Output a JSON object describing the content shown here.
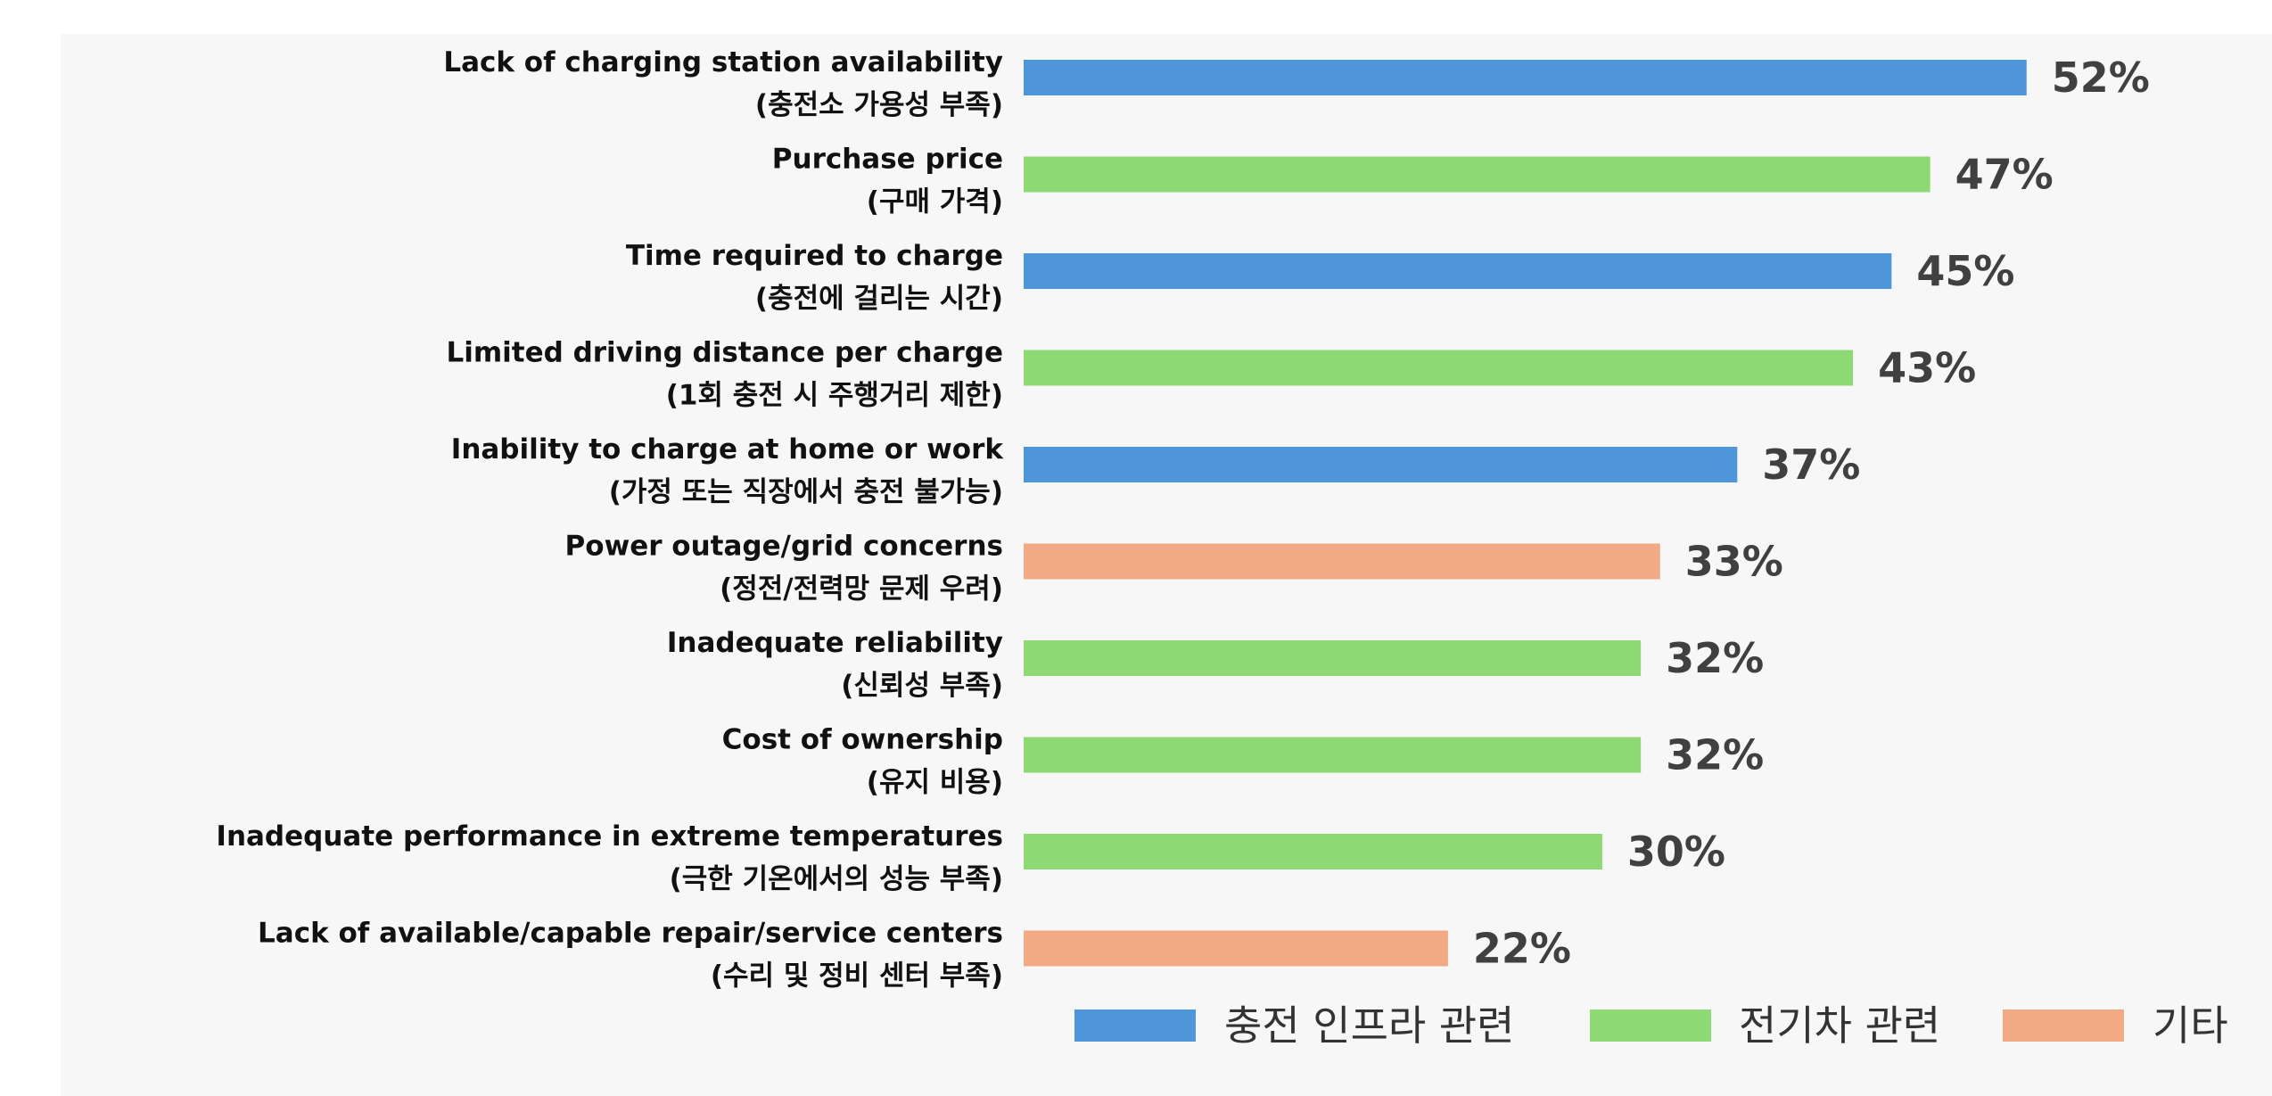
{
  "chart_data": {
    "type": "bar",
    "orientation": "horizontal",
    "title": "",
    "xlabel": "",
    "ylabel": "",
    "xlim": [
      0,
      56
    ],
    "grid": false,
    "legend_position": "bottom-right",
    "value_suffix": "%",
    "categories": [
      [
        "Lack of charging station availability",
        "(충전소 가용성 부족)"
      ],
      [
        "Purchase price",
        "(구매 가격)"
      ],
      [
        "Time required to charge",
        "(충전에 걸리는 시간)"
      ],
      [
        "Limited driving distance per charge",
        "(1회 충전 시 주행거리 제한)"
      ],
      [
        "Inability to charge at home or work",
        "(가정 또는 직장에서 충전 불가능)"
      ],
      [
        "Power outage/grid concerns",
        "(정전/전력망 문제 우려)"
      ],
      [
        "Inadequate reliability",
        "(신뢰성 부족)"
      ],
      [
        "Cost of ownership",
        "(유지 비용)"
      ],
      [
        "Inadequate performance in extreme temperatures",
        "(극한 기온에서의 성능 부족)"
      ],
      [
        "Lack of available/capable repair/service centers",
        "(수리 및 정비 센터 부족)"
      ]
    ],
    "values": [
      52,
      47,
      45,
      43,
      37,
      33,
      32,
      32,
      30,
      22
    ],
    "groups": [
      0,
      1,
      0,
      1,
      0,
      2,
      1,
      1,
      1,
      2
    ],
    "legend": [
      {
        "name": "충전 인프라 관련",
        "color": "#4E95D9"
      },
      {
        "name": "전기차 관련",
        "color": "#8ED973"
      },
      {
        "name": "기타",
        "color": "#F2AA84"
      }
    ]
  }
}
